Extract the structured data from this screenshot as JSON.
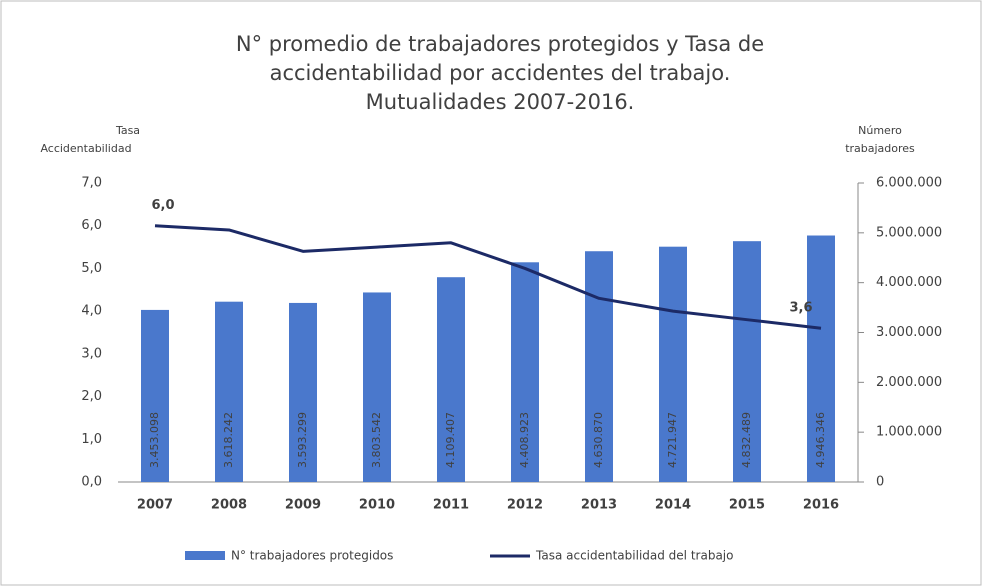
{
  "chart_data": {
    "type": "bar",
    "title": [
      "N° promedio de trabajadores protegidos y Tasa de",
      "accidentabilidad por accidentes del trabajo.",
      "Mutualidades 2007-2016."
    ],
    "ylabel": [
      "Tasa",
      "Accidentabilidad"
    ],
    "y2label": [
      "Número",
      "trabajadores"
    ],
    "categories": [
      "2007",
      "2008",
      "2009",
      "2010",
      "2011",
      "2012",
      "2013",
      "2014",
      "2015",
      "2016"
    ],
    "series": [
      {
        "name": "N° trabajadores protegidos",
        "type": "bar",
        "axis": "y2",
        "color": "#4a78cc",
        "values": [
          3453098,
          3618242,
          3593299,
          3803542,
          4109407,
          4408923,
          4630870,
          4721947,
          4832489,
          4946346
        ],
        "value_labels": [
          "3.453.098",
          "3.618.242",
          "3.593.299",
          "3.803.542",
          "4.109.407",
          "4.408.923",
          "4.630.870",
          "4.721.947",
          "4.832.489",
          "4.946.346"
        ]
      },
      {
        "name": "Tasa accidentabilidad del trabajo",
        "type": "line",
        "axis": "y",
        "color": "#1c2a66",
        "values": [
          6.0,
          5.9,
          5.4,
          5.5,
          5.6,
          5.0,
          4.3,
          4.0,
          3.8,
          3.6
        ],
        "value_labels": [
          "6,0",
          null,
          null,
          null,
          null,
          null,
          null,
          null,
          null,
          "3,6"
        ]
      }
    ],
    "ylim": [
      0,
      7
    ],
    "yticks": [
      {
        "value": 0,
        "label": "0,0"
      },
      {
        "value": 1,
        "label": "1,0"
      },
      {
        "value": 2,
        "label": "2,0"
      },
      {
        "value": 3,
        "label": "3,0"
      },
      {
        "value": 4,
        "label": "4,0"
      },
      {
        "value": 5,
        "label": "5,0"
      },
      {
        "value": 6,
        "label": "6,0"
      },
      {
        "value": 7,
        "label": "7,0"
      }
    ],
    "y2lim": [
      0,
      6000000
    ],
    "y2ticks": [
      0,
      {
        "value": 1000000,
        "label": "1.000.000"
      },
      {
        "value": 2000000,
        "label": "2.000.000"
      },
      {
        "value": 3000000,
        "label": "3.000.000"
      },
      {
        "value": 4000000,
        "label": "4.000.000"
      },
      {
        "value": 5000000,
        "label": "5.000.000"
      },
      {
        "value": 6000000,
        "label": "6.000.000"
      }
    ],
    "grid": false,
    "legend": "bottom"
  }
}
